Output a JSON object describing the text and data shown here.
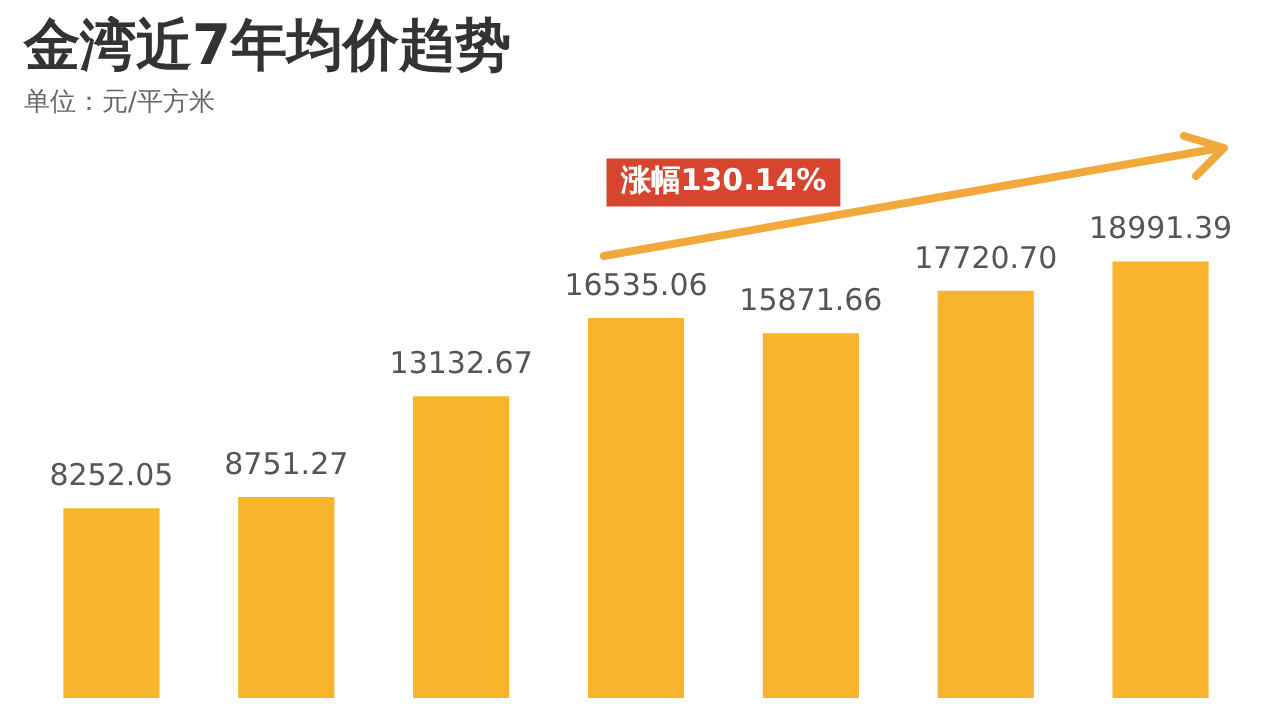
{
  "chart_data": {
    "type": "bar",
    "title": "金湾近7年均价趋势",
    "subtitle": "单位：元/平方米",
    "categories": [
      null,
      null,
      null,
      null,
      null,
      null,
      null
    ],
    "values": [
      8252.05,
      8751.27,
      13132.67,
      16535.06,
      15871.66,
      17720.7,
      18991.39
    ],
    "value_labels": [
      "8252.05",
      "8751.27",
      "13132.67",
      "16535.06",
      "15871.66",
      "17720.70",
      "18991.39"
    ],
    "color": "#f7b42c",
    "legend": false,
    "annotations": [
      "涨幅130.14%"
    ]
  }
}
